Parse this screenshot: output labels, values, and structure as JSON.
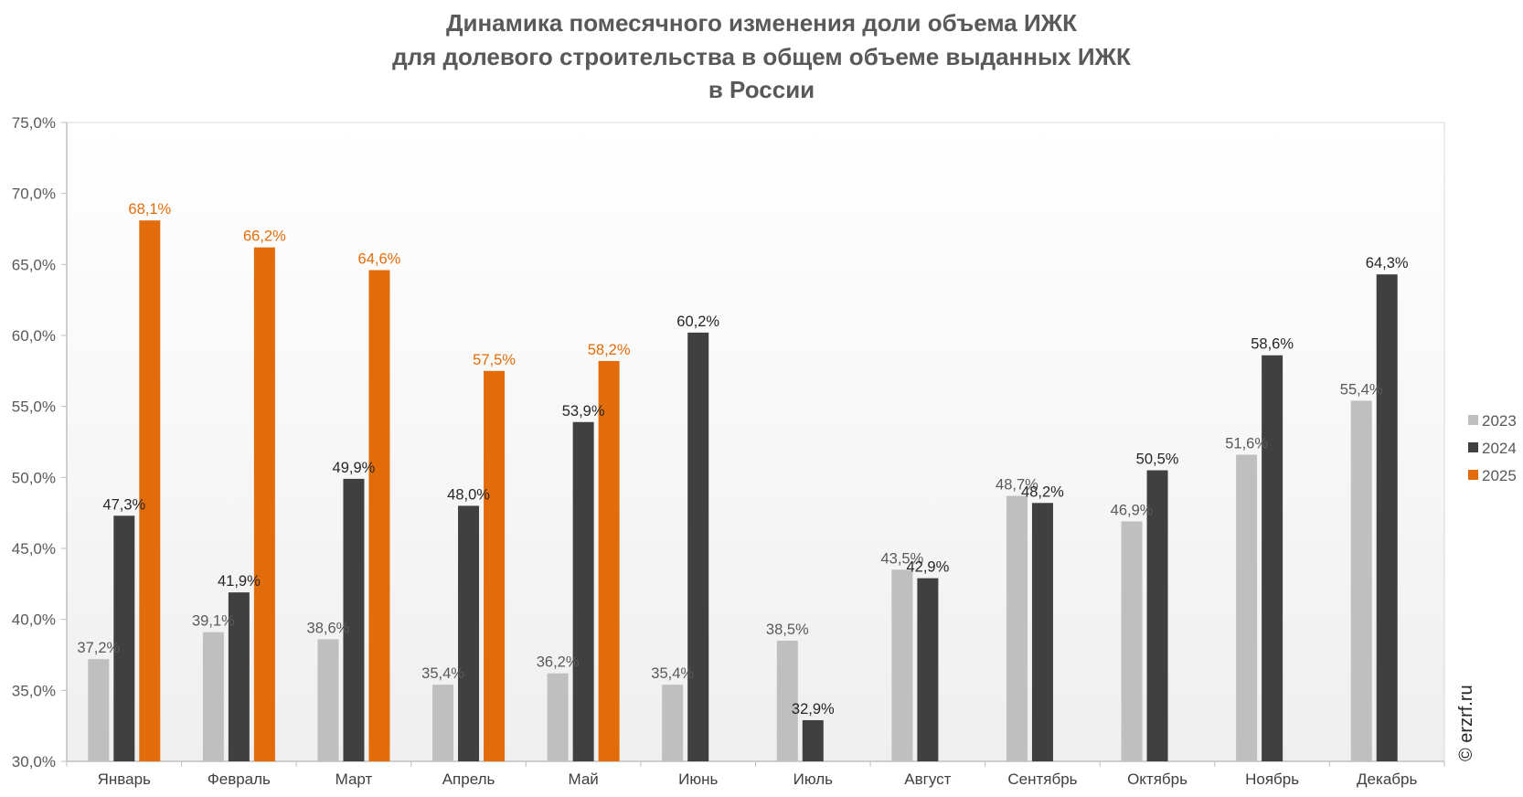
{
  "chart_data": {
    "type": "bar",
    "title": [
      "Динамика помесячного изменения доли объема ИЖК",
      "для долевого строительства в общем объеме выданных ИЖК",
      "в России"
    ],
    "categories": [
      "Январь",
      "Февраль",
      "Март",
      "Апрель",
      "Май",
      "Июнь",
      "Июль",
      "Август",
      "Сентябрь",
      "Октябрь",
      "Ноябрь",
      "Декабрь"
    ],
    "series": [
      {
        "name": "2023",
        "color": "#bfbfbf",
        "label_color": "#595959",
        "values": [
          37.2,
          39.1,
          38.6,
          35.4,
          36.2,
          35.4,
          38.5,
          43.5,
          48.7,
          46.9,
          51.6,
          55.4
        ]
      },
      {
        "name": "2024",
        "color": "#404040",
        "label_color": "#262626",
        "values": [
          47.3,
          41.9,
          49.9,
          48.0,
          53.9,
          60.2,
          32.9,
          42.9,
          48.2,
          50.5,
          58.6,
          64.3
        ]
      },
      {
        "name": "2025",
        "color": "#e36c0a",
        "label_color": "#e36c0a",
        "values": [
          68.1,
          66.2,
          64.6,
          57.5,
          58.2,
          null,
          null,
          null,
          null,
          null,
          null,
          null
        ]
      }
    ],
    "ylim": [
      30,
      75
    ],
    "yticks": [
      "30,0%",
      "35,0%",
      "40,0%",
      "45,0%",
      "50,0%",
      "55,0%",
      "60,0%",
      "65,0%",
      "70,0%",
      "75,0%"
    ],
    "xlabel": "",
    "ylabel": "",
    "grid": false,
    "legend": "right"
  },
  "watermark": "© erzrf.ru"
}
